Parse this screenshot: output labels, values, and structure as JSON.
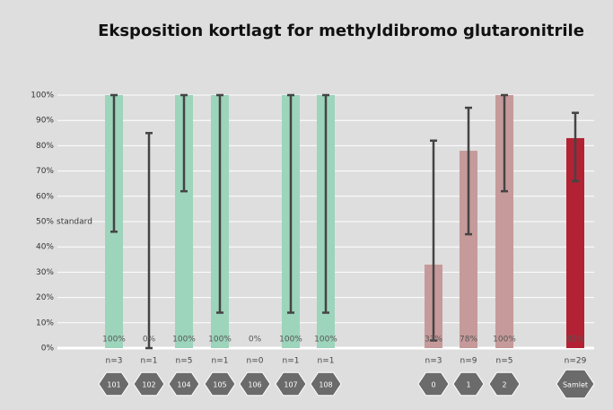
{
  "chart_data": {
    "type": "bar",
    "title": "Eksposition kortlagt for methyldibromo glutaronitrile",
    "categories": [
      "101",
      "102",
      "104",
      "105",
      "106",
      "107",
      "108",
      "0",
      "1",
      "2",
      "Samlet"
    ],
    "counts": [
      "n=3",
      "n=1",
      "n=5",
      "n=1",
      "n=0",
      "n=1",
      "n=1",
      "n=3",
      "n=9",
      "n=5",
      "n=29"
    ],
    "values": [
      100,
      0,
      100,
      100,
      0,
      100,
      100,
      33,
      78,
      100,
      83
    ],
    "value_labels": [
      "100%",
      "0%",
      "100%",
      "100%",
      "0%",
      "100%",
      "100%",
      "33%",
      "78%",
      "100%",
      "83%"
    ],
    "error_low": [
      46,
      0,
      62,
      14,
      null,
      14,
      14,
      3,
      45,
      62,
      66
    ],
    "error_high": [
      100,
      85,
      100,
      100,
      null,
      100,
      100,
      82,
      95,
      100,
      93
    ],
    "colors": [
      "#9dd4bc",
      "#9dd4bc",
      "#9dd4bc",
      "#9dd4bc",
      "#9dd4bc",
      "#9dd4bc",
      "#9dd4bc",
      "#c69a9a",
      "#c69a9a",
      "#c69a9a",
      "#b22234"
    ],
    "annotation": "standard",
    "annotation_y": 50,
    "ylim": [
      0,
      100
    ],
    "yticks": [
      {
        "value": 0,
        "label": "0%"
      },
      {
        "value": 10,
        "label": "10%"
      },
      {
        "value": 20,
        "label": "20%"
      },
      {
        "value": 30,
        "label": "30%"
      },
      {
        "value": 40,
        "label": "40%"
      },
      {
        "value": 50,
        "label": "50%"
      },
      {
        "value": 60,
        "label": "60%"
      },
      {
        "value": 70,
        "label": "70%"
      },
      {
        "value": 80,
        "label": "80%"
      },
      {
        "value": 90,
        "label": "90%"
      },
      {
        "value": 100,
        "label": "100%"
      }
    ],
    "grid": true
  }
}
